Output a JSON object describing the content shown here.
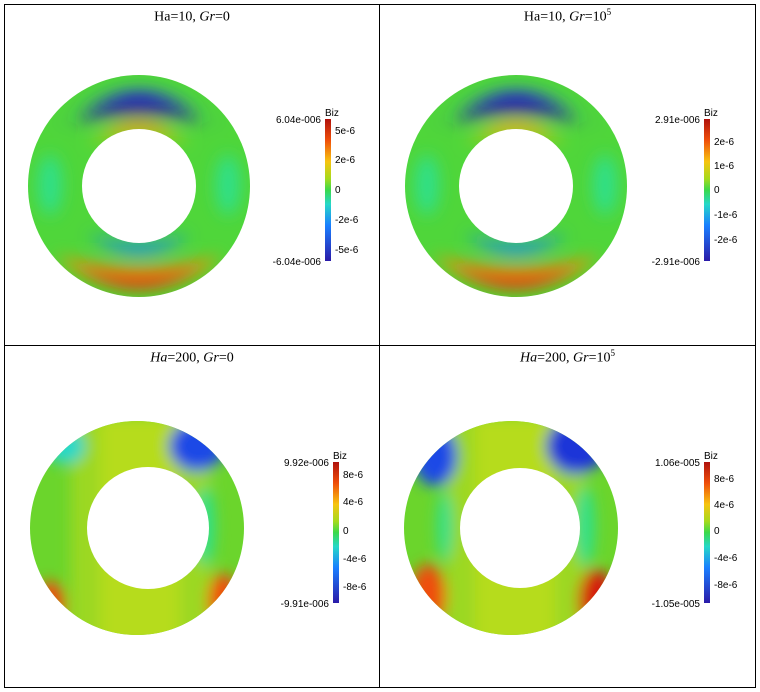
{
  "colormap": [
    "#2a1aa8",
    "#1f49e6",
    "#1a7fff",
    "#20b7ff",
    "#26d8c8",
    "#2ee08a",
    "#3bd94a",
    "#6ad92a",
    "#a6da1c",
    "#dbe015",
    "#f7c40f",
    "#f78a0c",
    "#ef4e0a",
    "#d51f0b",
    "#b0120d"
  ],
  "panels": [
    {
      "caption": {
        "pre_a": "Ha",
        "mid_a": "=10, ",
        "var_b": "Gr",
        "post_b": "=0",
        "sup": ""
      },
      "ha_italic": false,
      "colorbar": {
        "title": "Biz",
        "max_label": "6.04e-006",
        "min_label": "-6.04e-006",
        "ticks": [
          "5e-6",
          "2e-6",
          "0",
          "-2e-6",
          "-5e-6"
        ]
      }
    },
    {
      "caption": {
        "pre_a": "Ha",
        "mid_a": "=10, ",
        "var_b": "Gr",
        "post_b": "=10",
        "sup": "5"
      },
      "ha_italic": false,
      "colorbar": {
        "title": "Biz",
        "max_label": "2.91e-006",
        "min_label": "-2.91e-006",
        "ticks": [
          "2e-6",
          "1e-6",
          "0",
          "-1e-6",
          "-2e-6"
        ]
      }
    },
    {
      "caption": {
        "pre_a": "Ha",
        "mid_a": "=200, ",
        "var_b": "Gr",
        "post_b": "=0",
        "sup": ""
      },
      "ha_italic": true,
      "colorbar": {
        "title": "Biz",
        "max_label": "9.92e-006",
        "min_label": "-9.91e-006",
        "ticks": [
          "8e-6",
          "4e-6",
          "0",
          "-4e-6",
          "-8e-6"
        ]
      }
    },
    {
      "caption": {
        "pre_a": "Ha",
        "mid_a": "=200, ",
        "var_b": "Gr",
        "post_b": "=10",
        "sup": "5"
      },
      "ha_italic": true,
      "colorbar": {
        "title": "Biz",
        "max_label": "1.06e-005",
        "min_label": "-1.05e-005",
        "ticks": [
          "8e-6",
          "4e-6",
          "0",
          "-4e-6",
          "-8e-6"
        ]
      }
    }
  ]
}
